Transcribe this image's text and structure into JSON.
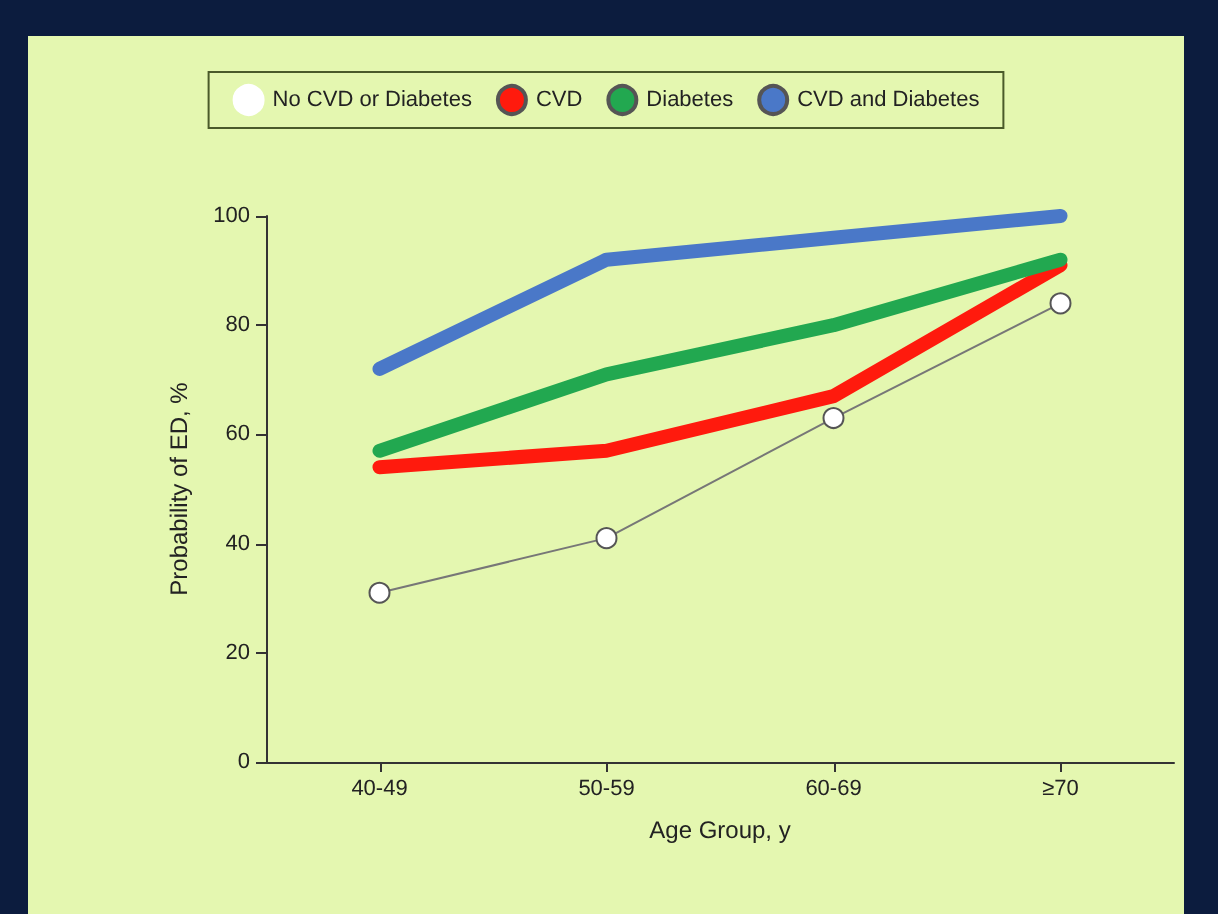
{
  "chart_data": {
    "type": "line",
    "xlabel": "Age Group, y",
    "ylabel": "Probability of ED, %",
    "categories": [
      "40-49",
      "50-59",
      "60-69",
      "≥70"
    ],
    "series": [
      {
        "name": "No CVD or Diabetes",
        "color": "#ffffff",
        "values": [
          31,
          41,
          63,
          84
        ],
        "marker": "circle"
      },
      {
        "name": "CVD",
        "color": "#ff1a0d",
        "values": [
          54,
          57,
          67,
          91
        ],
        "marker": "none"
      },
      {
        "name": "Diabetes",
        "color": "#22a850",
        "values": [
          57,
          71,
          80,
          92
        ],
        "marker": "none"
      },
      {
        "name": "CVD and Diabetes",
        "color": "#4a78c8",
        "values": [
          72,
          92,
          96,
          100
        ],
        "marker": "none"
      }
    ],
    "ylim": [
      0,
      100
    ],
    "yticks": [
      0,
      20,
      40,
      60,
      80,
      100
    ],
    "grid": false,
    "legend": "top"
  }
}
